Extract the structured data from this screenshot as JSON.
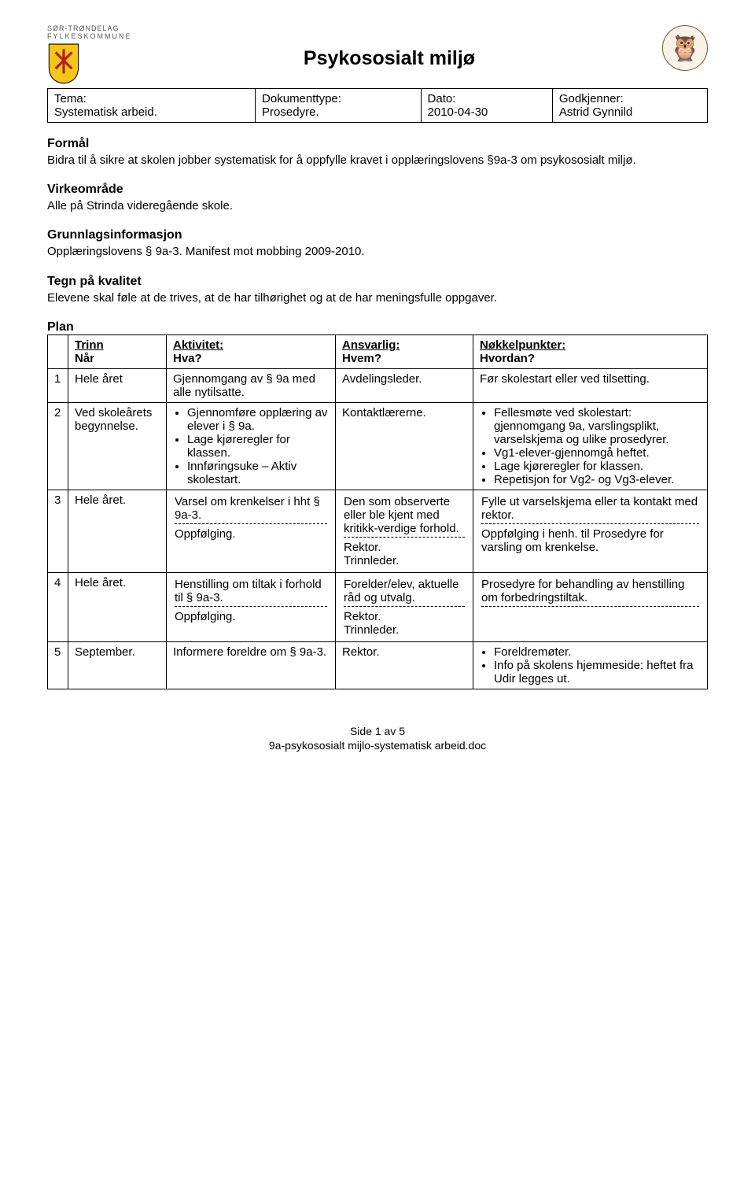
{
  "header": {
    "left_logo_line1": "SØR-TRØNDELAG",
    "left_logo_line2": "FYLKESKOMMUNE",
    "title": "Psykososialt miljø",
    "right_logo_alt": "Strinda videregående skole"
  },
  "meta": {
    "col1_label": "Tema:",
    "col1_value": "Systematisk arbeid.",
    "col2_label": "Dokumenttype:",
    "col2_value": "Prosedyre.",
    "col3_label": "Dato:",
    "col3_value": "2010-04-30",
    "col4_label": "Godkjenner:",
    "col4_value": "Astrid Gynnild"
  },
  "sections": {
    "formal_h": "Formål",
    "formal_text": "Bidra til å sikre at skolen jobber systematisk for å oppfylle kravet i opplæringslovens §9a-3 om psykososialt miljø.",
    "virke_h": "Virkeområde",
    "virke_text": "Alle på Strinda videregående skole.",
    "grunn_h": "Grunnlagsinformasjon",
    "grunn_text": "Opplæringslovens § 9a-3. Manifest mot mobbing 2009-2010.",
    "tegn_h": "Tegn på kvalitet",
    "tegn_text": "Elevene skal føle at de trives, at de har tilhørighet og at de har meningsfulle oppgaver.",
    "plan_h": "Plan"
  },
  "plan": {
    "headers": {
      "trinn_l1": "Trinn",
      "trinn_l2": "Når",
      "akt_l1": "Aktivitet:",
      "akt_l2": "Hva?",
      "ansv_l1": "Ansvarlig:",
      "ansv_l2": "Hvem?",
      "nokkel_l1": "Nøkkelpunkter:",
      "nokkel_l2": "Hvordan?"
    },
    "rows": [
      {
        "n": "1",
        "when": "Hele året",
        "activity_plain": "Gjennomgang av § 9a med alle nytilsatte.",
        "responsible": "Avdelingsleder.",
        "key_plain": "Før skolestart eller ved tilsetting."
      },
      {
        "n": "2",
        "when": "Ved skoleårets begynnelse.",
        "activity_bullets": [
          "Gjennomføre opplæring av elever i § 9a.",
          "Lage kjøreregler for klassen.",
          "Innføringsuke – Aktiv skolestart."
        ],
        "responsible": "Kontaktlærerne.",
        "key_bullets": [
          "Fellesmøte ved skolestart: gjennomgang 9a, varslingsplikt, varselskjema og ulike prosedyrer.",
          "Vg1-elever-gjennomgå heftet.",
          "Lage kjøreregler for klassen.",
          "Repetisjon for Vg2- og Vg3-elever."
        ]
      },
      {
        "n": "3",
        "when": "Hele året.",
        "activity_split": [
          "Varsel om krenkelser i hht § 9a-3.",
          "Oppfølging."
        ],
        "responsible_split": [
          "Den som observerte eller ble kjent med kritikk-verdige forhold.",
          "Rektor.\nTrinnleder."
        ],
        "key_split": [
          "Fylle ut varselskjema eller ta kontakt med rektor.",
          "Oppfølging i henh. til Prosedyre for varsling om krenkelse."
        ]
      },
      {
        "n": "4",
        "when": "Hele året.",
        "activity_split": [
          "Henstilling om tiltak i forhold til § 9a-3.",
          "Oppfølging."
        ],
        "responsible_split": [
          "Forelder/elev, aktuelle råd og utvalg.",
          "Rektor.\nTrinnleder."
        ],
        "key_split": [
          "Prosedyre for behandling av henstilling om forbedringstiltak.",
          ""
        ]
      },
      {
        "n": "5",
        "when": "September.",
        "activity_plain": "Informere foreldre om § 9a-3.",
        "responsible": "Rektor.",
        "key_bullets": [
          "Foreldremøter.",
          "Info på skolens hjemmeside: heftet fra Udir legges ut."
        ]
      }
    ]
  },
  "footer": {
    "line1": "Side 1 av 5",
    "line2": "9a-psykososialt mijlo-systematisk arbeid.doc"
  },
  "colors": {
    "text": "#000000",
    "background": "#ffffff",
    "shield_yellow": "#f5c518",
    "shield_red": "#b02020"
  }
}
